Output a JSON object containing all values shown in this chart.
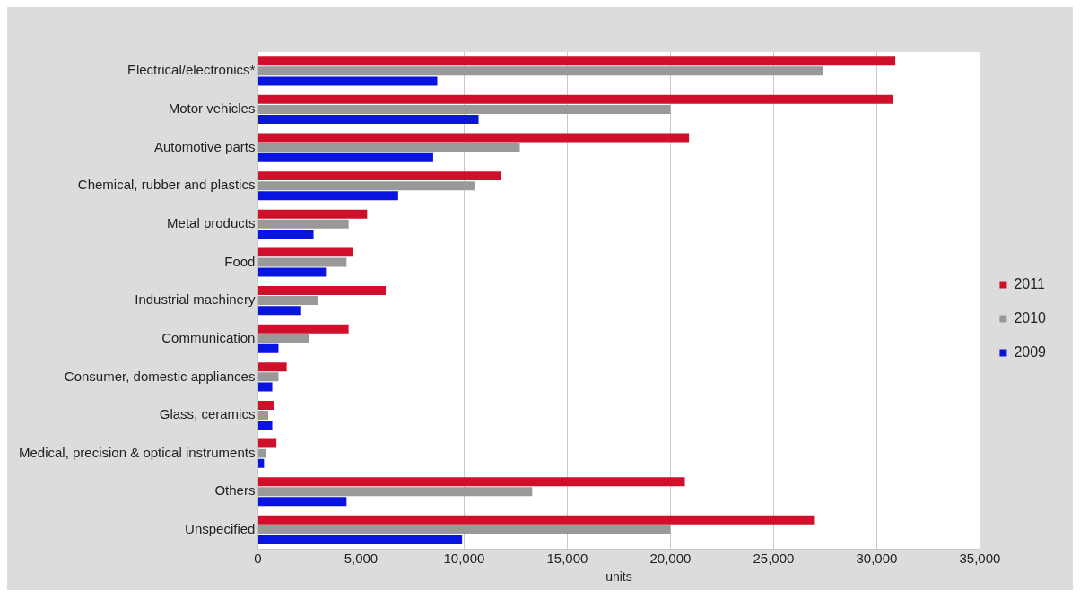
{
  "chart_data": {
    "type": "bar",
    "orientation": "horizontal",
    "xlabel": "units",
    "categories": [
      "Electrical/electronics*",
      "Motor vehicles",
      "Automotive parts",
      "Chemical, rubber and plastics",
      "Metal products",
      "Food",
      "Industrial machinery",
      "Communication",
      "Consumer, domestic appliances",
      "Glass, ceramics",
      "Medical, precision & optical instruments",
      "Others",
      "Unspecified"
    ],
    "series": [
      {
        "name": "2011",
        "color": "#d0102a",
        "values": [
          30900,
          30800,
          20900,
          11800,
          5300,
          4600,
          6200,
          4400,
          1400,
          800,
          900,
          20700,
          27000
        ]
      },
      {
        "name": "2010",
        "color": "#999999",
        "values": [
          27400,
          20000,
          12700,
          10500,
          4400,
          4300,
          2900,
          2500,
          1000,
          500,
          400,
          13300,
          20000
        ]
      },
      {
        "name": "2009",
        "color": "#0a14e0",
        "values": [
          8700,
          10700,
          8500,
          6800,
          2700,
          3300,
          2100,
          1000,
          700,
          700,
          300,
          4300,
          9900
        ]
      }
    ],
    "xlim": [
      0,
      35000
    ],
    "xticks": [
      0,
      {
        "value": 5000,
        "label": "5,000"
      },
      {
        "value": 10000,
        "label": "10,000"
      },
      {
        "value": 15000,
        "label": "15,000"
      },
      {
        "value": 20000,
        "label": "20,000"
      },
      {
        "value": 25000,
        "label": "25,000"
      },
      {
        "value": 30000,
        "label": "30,000"
      },
      {
        "value": 35000,
        "label": "35,000"
      }
    ],
    "grid": "x",
    "legend": "right"
  }
}
